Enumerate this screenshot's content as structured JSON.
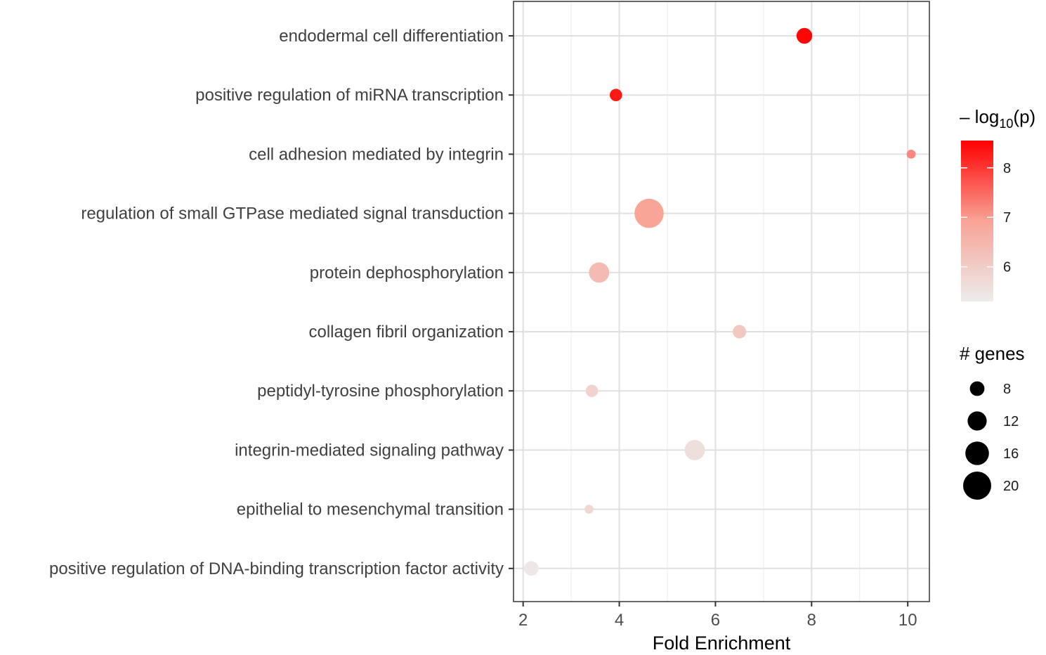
{
  "chart_data": {
    "type": "scatter",
    "xlabel": "Fold Enrichment",
    "xlim": [
      1.8,
      10.45
    ],
    "xticks": [
      2,
      4,
      6,
      8,
      10
    ],
    "grid": true,
    "points": [
      {
        "term": "endodermal cell differentiation",
        "fold_enrichment": 7.85,
        "neg_log10_p": 8.5,
        "genes": 9
      },
      {
        "term": "positive regulation of miRNA transcription",
        "fold_enrichment": 3.93,
        "neg_log10_p": 8.3,
        "genes": 6
      },
      {
        "term": "cell adhesion mediated by integrin",
        "fold_enrichment": 10.07,
        "neg_log10_p": 7.2,
        "genes": 3
      },
      {
        "term": "regulation of small GTPase mediated signal transduction",
        "fold_enrichment": 4.62,
        "neg_log10_p": 6.9,
        "genes": 21
      },
      {
        "term": "protein dephosphorylation",
        "fold_enrichment": 3.58,
        "neg_log10_p": 6.4,
        "genes": 13
      },
      {
        "term": "collagen fibril organization",
        "fold_enrichment": 6.5,
        "neg_log10_p": 6.1,
        "genes": 7
      },
      {
        "term": "peptidyl-tyrosine phosphorylation",
        "fold_enrichment": 3.43,
        "neg_log10_p": 5.85,
        "genes": 6
      },
      {
        "term": "integrin-mediated signaling pathway",
        "fold_enrichment": 5.57,
        "neg_log10_p": 5.6,
        "genes": 13
      },
      {
        "term": "epithelial to mesenchymal transition",
        "fold_enrichment": 3.37,
        "neg_log10_p": 5.75,
        "genes": 3
      },
      {
        "term": "positive regulation of DNA-binding transcription factor activity",
        "fold_enrichment": 2.17,
        "neg_log10_p": 5.4,
        "genes": 8
      }
    ],
    "color_legend": {
      "title_prefix": "– log",
      "title_subscript": "10",
      "title_suffix": "(p)",
      "min": 5.3,
      "max": 8.55,
      "ticks": [
        6,
        7,
        8
      ],
      "low_color": "#ececec",
      "high_color": "#ff0000"
    },
    "size_legend": {
      "title": "# genes",
      "values": [
        8,
        12,
        16,
        20
      ],
      "color": "#000000"
    }
  }
}
